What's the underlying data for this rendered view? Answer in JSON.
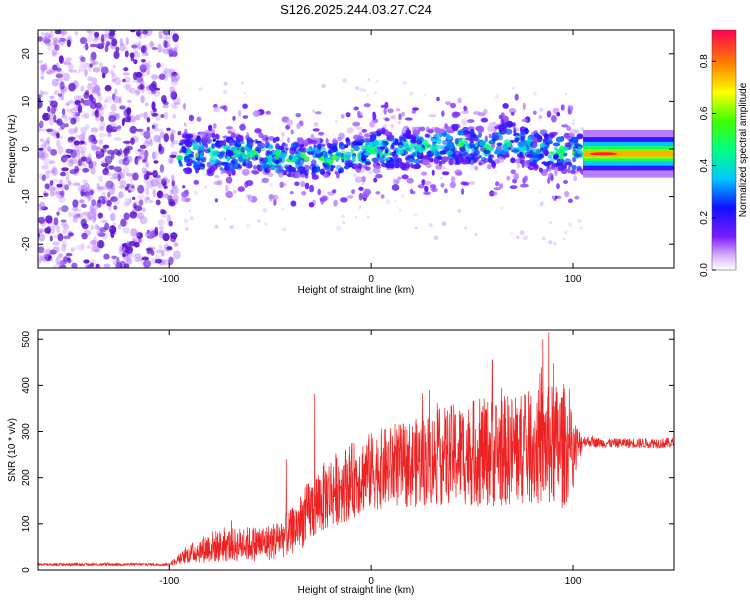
{
  "title": "S126.2025.244.03.27.C24",
  "colors": {
    "snr_line": "#ee2222",
    "scatter_noise": "#b070ff",
    "scatter_dark": "#5a0fd0"
  },
  "chart_data": [
    {
      "type": "scatter",
      "name": "spectrogram",
      "xlabel": "Height of straight line (km)",
      "ylabel": "Frequency (Hz)",
      "xlim": [
        -165,
        150
      ],
      "ylim": [
        -25,
        25
      ],
      "xticks": [
        "-100",
        "0",
        "100"
      ],
      "yticks": [
        "-20",
        "-10",
        "0",
        "10",
        "20"
      ],
      "noise_region_x": [
        -165,
        -96
      ],
      "signal_center_track": {
        "x": [
          -95,
          -80,
          -60,
          -40,
          -20,
          0,
          20,
          40,
          60,
          65,
          80,
          100,
          110,
          150
        ],
        "freq": [
          -1,
          -1,
          -1,
          -2,
          -2,
          0,
          0,
          1,
          0,
          2,
          0,
          -1,
          -1,
          -1
        ]
      },
      "strong_tone_x": [
        105,
        150
      ],
      "colorbar": {
        "label": "Normalized spectral amplitude",
        "ticks": [
          "0.0",
          "0.2",
          "0.4",
          "0.6",
          "0.8"
        ],
        "range": [
          0,
          0.92
        ],
        "colormap": "rainbow"
      }
    },
    {
      "type": "line",
      "name": "snr",
      "xlabel": "Height of straight line (km)",
      "ylabel": "SNR (10 * v/v)",
      "xlim": [
        -165,
        150
      ],
      "ylim": [
        0,
        520
      ],
      "xticks": [
        "-100",
        "0",
        "100"
      ],
      "yticks": [
        "0",
        "100",
        "200",
        "300",
        "400",
        "500"
      ],
      "envelope": {
        "x": [
          -165,
          -100,
          -90,
          -80,
          -50,
          -40,
          -30,
          -20,
          0,
          20,
          40,
          60,
          80,
          95,
          100,
          105,
          115,
          150
        ],
        "mean": [
          12,
          12,
          35,
          50,
          60,
          80,
          130,
          170,
          215,
          230,
          250,
          255,
          265,
          270,
          255,
          280,
          275,
          275
        ],
        "amp": [
          3,
          3,
          20,
          35,
          40,
          50,
          70,
          80,
          85,
          95,
          110,
          120,
          125,
          140,
          80,
          12,
          10,
          12
        ]
      },
      "spikes": [
        {
          "x": -28,
          "y": 382
        },
        {
          "x": -42,
          "y": 240
        },
        {
          "x": 60,
          "y": 455
        },
        {
          "x": 88,
          "y": 515
        },
        {
          "x": 85,
          "y": 500
        }
      ]
    }
  ]
}
